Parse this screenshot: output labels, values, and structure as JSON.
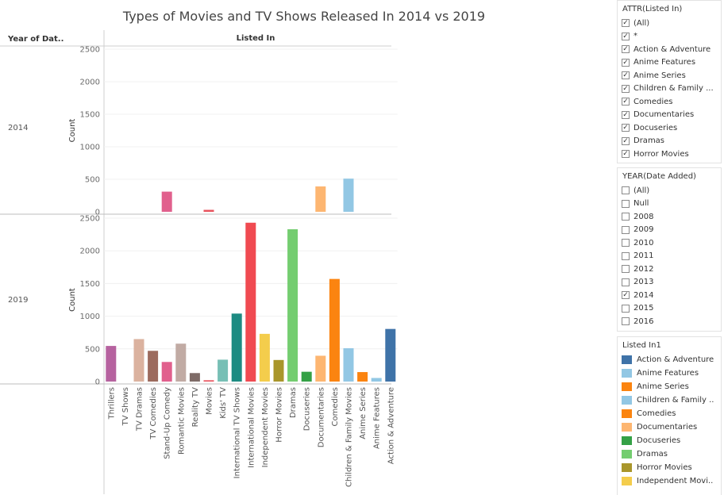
{
  "chart_data": {
    "type": "bar",
    "title": "Types of Movies and TV Shows Released In 2014 vs 2019",
    "row_header": "Year of Dat..",
    "column_header": "Listed In",
    "ylabel": "Count",
    "ylim": [
      0,
      2500
    ],
    "yticks": [
      0,
      500,
      1000,
      1500,
      2000,
      2500
    ],
    "categories": [
      "Thrillers",
      "TV Shows",
      "TV Dramas",
      "TV Comedies",
      "Stand-Up Comedy",
      "Romantic Movies",
      "Reality TV",
      "Movies",
      "Kids' TV",
      "International TV Shows",
      "International Movies",
      "Independent Movies",
      "Horror Movies",
      "Dramas",
      "Docuseries",
      "Documentaries",
      "Comedies",
      "Children & Family Movies",
      "Anime Series",
      "Anime Features",
      "Action & Adventure"
    ],
    "colors": [
      "#b6629f",
      "#d4d4d4",
      "#dbb29f",
      "#9c6b5e",
      "#e1608d",
      "#c1aba4",
      "#7e6b67",
      "#e8525c",
      "#77bfb5",
      "#1d8b82",
      "#f04a51",
      "#f4cd4c",
      "#a9962b",
      "#74cd70",
      "#34a146",
      "#fdb671",
      "#fb8410",
      "#92c7e4",
      "#fb8410",
      "#92c7e4",
      "#3f73a8"
    ],
    "series": [
      {
        "name": "2014",
        "values": [
          null,
          null,
          null,
          null,
          310,
          null,
          null,
          30,
          null,
          null,
          null,
          null,
          null,
          null,
          null,
          390,
          null,
          510,
          null,
          null,
          null
        ]
      },
      {
        "name": "2019",
        "values": [
          545,
          null,
          650,
          470,
          300,
          580,
          130,
          20,
          335,
          1040,
          2430,
          730,
          330,
          2330,
          150,
          395,
          1570,
          510,
          145,
          55,
          805
        ]
      }
    ]
  },
  "filters": [
    {
      "title": "ATTR(Listed In)",
      "items": [
        {
          "label": "(All)",
          "checked": true
        },
        {
          "label": "*",
          "checked": true
        },
        {
          "label": "Action & Adventure",
          "checked": true
        },
        {
          "label": "Anime Features",
          "checked": true
        },
        {
          "label": "Anime Series",
          "checked": true
        },
        {
          "label": "Children & Family ...",
          "checked": true
        },
        {
          "label": "Comedies",
          "checked": true
        },
        {
          "label": "Documentaries",
          "checked": true
        },
        {
          "label": "Docuseries",
          "checked": true
        },
        {
          "label": "Dramas",
          "checked": true
        },
        {
          "label": "Horror Movies",
          "checked": true
        }
      ]
    },
    {
      "title": "YEAR(Date Added)",
      "items": [
        {
          "label": "(All)",
          "checked": false
        },
        {
          "label": "Null",
          "checked": false
        },
        {
          "label": "2008",
          "checked": false
        },
        {
          "label": "2009",
          "checked": false
        },
        {
          "label": "2010",
          "checked": false
        },
        {
          "label": "2011",
          "checked": false
        },
        {
          "label": "2012",
          "checked": false
        },
        {
          "label": "2013",
          "checked": false
        },
        {
          "label": "2014",
          "checked": true
        },
        {
          "label": "2015",
          "checked": false
        },
        {
          "label": "2016",
          "checked": false
        }
      ]
    }
  ],
  "legend": {
    "title": "Listed In1",
    "items": [
      {
        "label": "Action & Adventure",
        "color": "#3f73a8"
      },
      {
        "label": "Anime Features",
        "color": "#92c7e4"
      },
      {
        "label": "Anime Series",
        "color": "#fb8410"
      },
      {
        "label": "Children & Family ..",
        "color": "#92c7e4"
      },
      {
        "label": "Comedies",
        "color": "#fb8410"
      },
      {
        "label": "Documentaries",
        "color": "#fdb671"
      },
      {
        "label": "Docuseries",
        "color": "#34a146"
      },
      {
        "label": "Dramas",
        "color": "#74cd70"
      },
      {
        "label": "Horror Movies",
        "color": "#a9962b"
      },
      {
        "label": "Independent Movi..",
        "color": "#f4cd4c"
      }
    ]
  }
}
